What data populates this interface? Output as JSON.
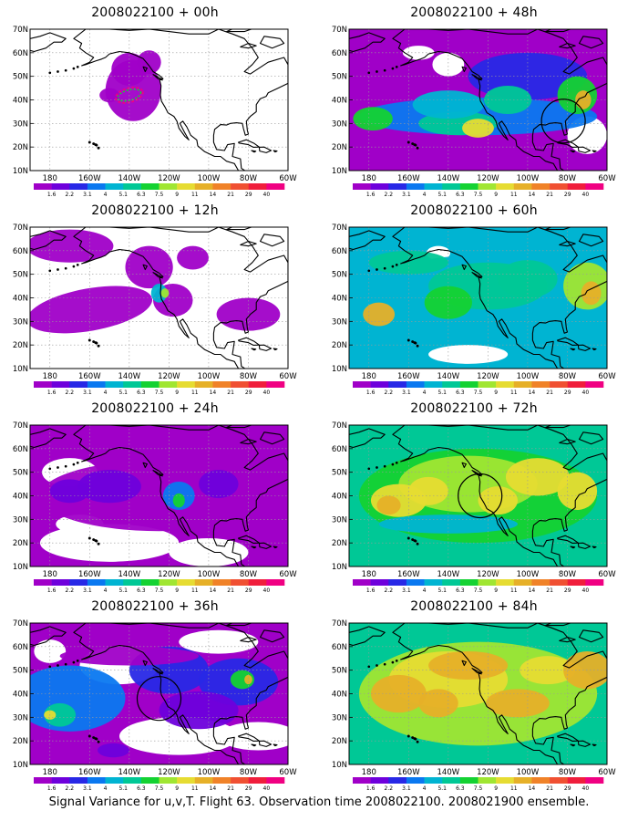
{
  "panels": [
    {
      "title": "2008022100 + 00h",
      "level": 0,
      "circle": null
    },
    {
      "title": "2008022100 + 12h",
      "level": 1,
      "circle": null
    },
    {
      "title": "2008022100 + 24h",
      "level": 2,
      "circle": null
    },
    {
      "title": "2008022100 + 36h",
      "level": 3,
      "circle": {
        "lon": -125,
        "lat": 38
      }
    },
    {
      "title": "2008022100 + 48h",
      "level": 4,
      "circle": {
        "lon": -82,
        "lat": 31
      }
    },
    {
      "title": "2008022100 + 60h",
      "level": 5,
      "circle": null
    },
    {
      "title": "2008022100 + 72h",
      "level": 6,
      "circle": {
        "lon": -124,
        "lat": 40
      }
    },
    {
      "title": "2008022100 + 84h",
      "level": 7,
      "circle": null
    }
  ],
  "axes": {
    "lat_labels": [
      "10N",
      "20N",
      "30N",
      "40N",
      "50N",
      "60N",
      "70N"
    ],
    "lat_values": [
      10,
      20,
      30,
      40,
      50,
      60,
      70
    ],
    "lon_labels": [
      "180",
      "160W",
      "140W",
      "120W",
      "100W",
      "80W",
      "60W"
    ],
    "lon_values": [
      -180,
      -160,
      -140,
      -120,
      -100,
      -80,
      -60
    ]
  },
  "colorbar": {
    "labels": [
      "1.6",
      "2.2",
      "3.1",
      "4",
      "5.1",
      "6.3",
      "7.5",
      "9",
      "11",
      "14",
      "21",
      "29",
      "40"
    ],
    "colors": [
      "#a000c8",
      "#6e00dc",
      "#2828e6",
      "#0a78f0",
      "#00b4d2",
      "#00c896",
      "#14d232",
      "#a0e632",
      "#e6dc32",
      "#e6b028",
      "#f08228",
      "#f05032",
      "#f01e3c",
      "#f00082"
    ]
  },
  "footer": "Signal Variance for u,v,T. Flight 63. Observation time 2008022100. 2008021900 ensemble."
}
